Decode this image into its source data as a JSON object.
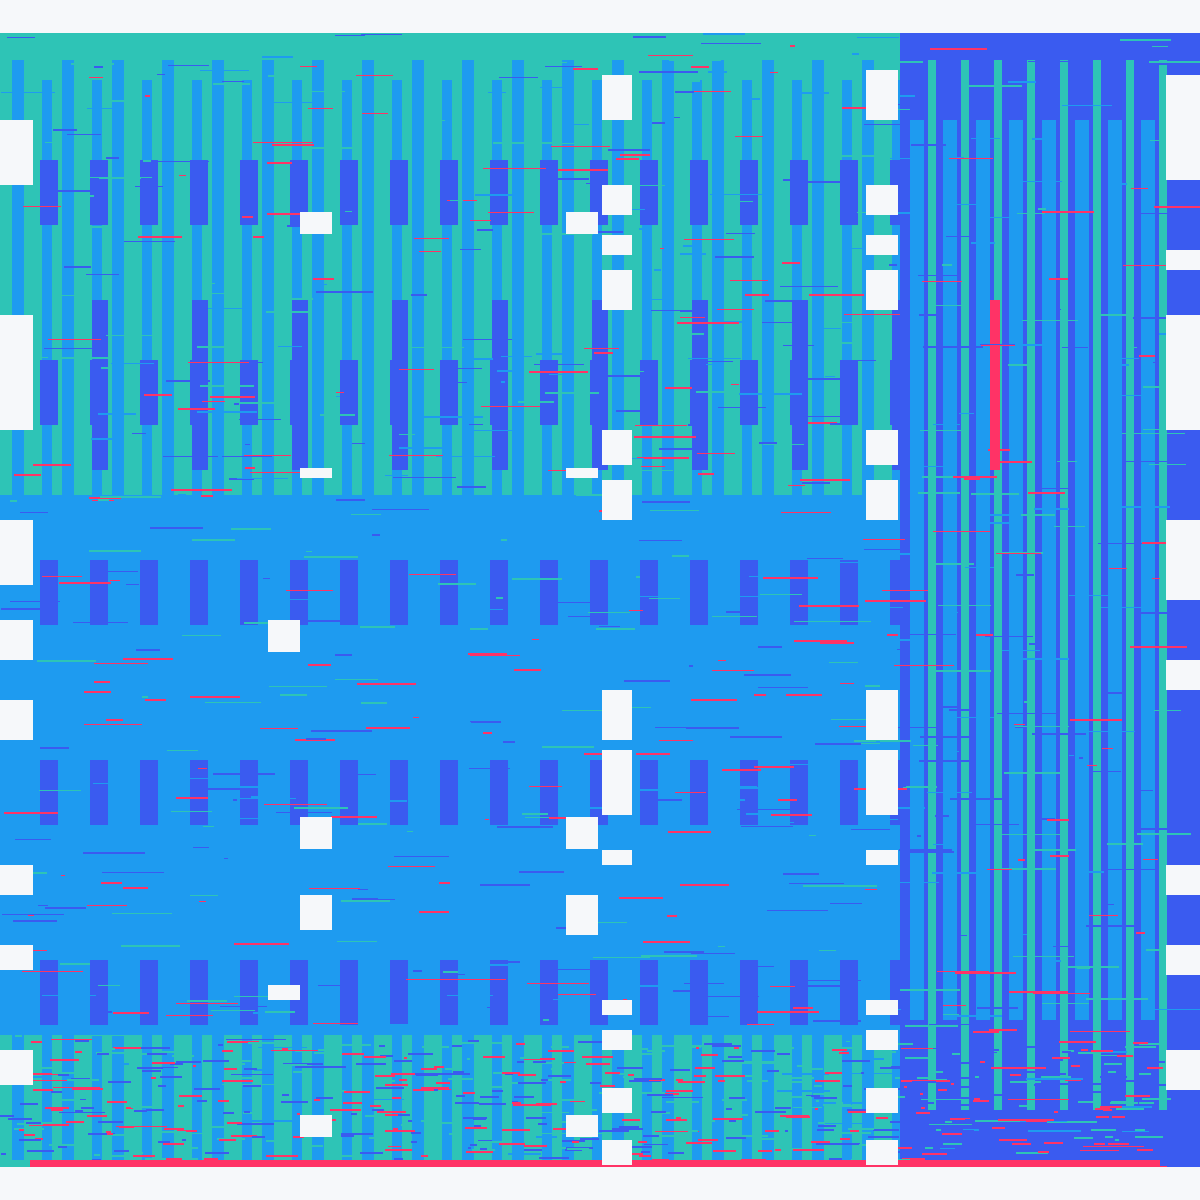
{
  "colors": {
    "background": "#f6f8fa",
    "teal": "#2ec4b6",
    "sky": "#1e9bf0",
    "blue": "#3a5bf0",
    "pink": "#ff3366",
    "white": "#f6f8fa"
  }
}
